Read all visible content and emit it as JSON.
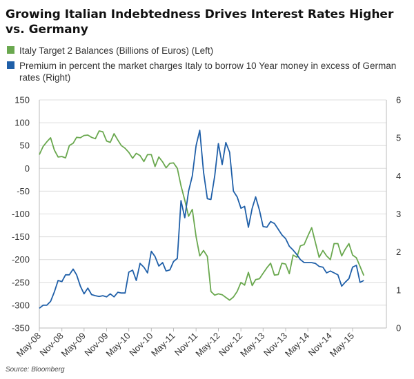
{
  "chart_data": {
    "type": "line",
    "title": "Growing Italian Indebtedness Drives Interest Rates Higher vs. Germany",
    "source": "Source: Bloomberg",
    "x_tick_labels": [
      "May-08",
      "Nov-08",
      "May-09",
      "Nov-09",
      "May-10",
      "Nov-10",
      "May-11",
      "Nov-11",
      "May-12",
      "Nov-12",
      "May-13",
      "Nov-13",
      "May-14",
      "Nov-14",
      "May-15"
    ],
    "y_left": {
      "ticks": [
        -350,
        -300,
        -250,
        -200,
        -150,
        -100,
        -50,
        0,
        50,
        100,
        150
      ],
      "range": [
        -350,
        150
      ]
    },
    "y_right": {
      "ticks": [
        0,
        1,
        2,
        3,
        4,
        5,
        6
      ],
      "range": [
        0,
        6
      ]
    },
    "grid": "horizontal",
    "legend_placement": "top",
    "series": [
      {
        "name": "Italy Target 2 Balances (Billions of Euros) (Left)",
        "axis": "left",
        "color": "#6aa84f",
        "points": [
          [
            "2008-05-01",
            30
          ],
          [
            "2008-06-01",
            48
          ],
          [
            "2008-07-01",
            58
          ],
          [
            "2008-08-01",
            67
          ],
          [
            "2008-09-01",
            40
          ],
          [
            "2008-10-01",
            25
          ],
          [
            "2008-11-01",
            26
          ],
          [
            "2008-12-01",
            23
          ],
          [
            "2009-01-01",
            50
          ],
          [
            "2009-02-01",
            55
          ],
          [
            "2009-03-01",
            68
          ],
          [
            "2009-04-01",
            67
          ],
          [
            "2009-05-01",
            72
          ],
          [
            "2009-06-01",
            73
          ],
          [
            "2009-07-01",
            68
          ],
          [
            "2009-08-01",
            65
          ],
          [
            "2009-09-01",
            82
          ],
          [
            "2009-10-01",
            80
          ],
          [
            "2009-11-01",
            60
          ],
          [
            "2009-12-01",
            57
          ],
          [
            "2010-01-01",
            76
          ],
          [
            "2010-02-01",
            62
          ],
          [
            "2010-03-01",
            50
          ],
          [
            "2010-04-01",
            44
          ],
          [
            "2010-05-01",
            35
          ],
          [
            "2010-06-01",
            22
          ],
          [
            "2010-07-01",
            33
          ],
          [
            "2010-08-01",
            28
          ],
          [
            "2010-09-01",
            15
          ],
          [
            "2010-10-01",
            30
          ],
          [
            "2010-11-01",
            30
          ],
          [
            "2010-12-01",
            4
          ],
          [
            "2011-01-01",
            25
          ],
          [
            "2011-02-01",
            14
          ],
          [
            "2011-03-01",
            1
          ],
          [
            "2011-04-01",
            11
          ],
          [
            "2011-05-01",
            12
          ],
          [
            "2011-06-01",
            0
          ],
          [
            "2011-07-01",
            -38
          ],
          [
            "2011-08-01",
            -70
          ],
          [
            "2011-09-01",
            -105
          ],
          [
            "2011-10-01",
            -90
          ],
          [
            "2011-11-01",
            -150
          ],
          [
            "2011-12-01",
            -192
          ],
          [
            "2012-01-01",
            -180
          ],
          [
            "2012-02-01",
            -193
          ],
          [
            "2012-03-01",
            -270
          ],
          [
            "2012-04-01",
            -278
          ],
          [
            "2012-05-01",
            -275
          ],
          [
            "2012-06-01",
            -277
          ],
          [
            "2012-07-01",
            -283
          ],
          [
            "2012-08-01",
            -289
          ],
          [
            "2012-09-01",
            -282
          ],
          [
            "2012-10-01",
            -270
          ],
          [
            "2012-11-01",
            -250
          ],
          [
            "2012-12-01",
            -256
          ],
          [
            "2013-01-01",
            -228
          ],
          [
            "2013-02-01",
            -257
          ],
          [
            "2013-03-01",
            -244
          ],
          [
            "2013-04-01",
            -242
          ],
          [
            "2013-05-01",
            -230
          ],
          [
            "2013-06-01",
            -218
          ],
          [
            "2013-07-01",
            -208
          ],
          [
            "2013-08-01",
            -234
          ],
          [
            "2013-09-01",
            -233
          ],
          [
            "2013-10-01",
            -208
          ],
          [
            "2013-11-01",
            -210
          ],
          [
            "2013-12-01",
            -231
          ],
          [
            "2014-01-01",
            -190
          ],
          [
            "2014-02-01",
            -195
          ],
          [
            "2014-03-01",
            -170
          ],
          [
            "2014-04-01",
            -167
          ],
          [
            "2014-05-01",
            -148
          ],
          [
            "2014-06-01",
            -130
          ],
          [
            "2014-07-01",
            -162
          ],
          [
            "2014-08-01",
            -195
          ],
          [
            "2014-09-01",
            -180
          ],
          [
            "2014-10-01",
            -192
          ],
          [
            "2014-11-01",
            -200
          ],
          [
            "2014-12-01",
            -165
          ],
          [
            "2015-01-01",
            -165
          ],
          [
            "2015-02-01",
            -192
          ],
          [
            "2015-03-01",
            -178
          ],
          [
            "2015-04-01",
            -165
          ],
          [
            "2015-05-01",
            -190
          ],
          [
            "2015-06-01",
            -196
          ],
          [
            "2015-07-01",
            -215
          ],
          [
            "2015-08-01",
            -235
          ]
        ]
      },
      {
        "name": "Premium in percent the market charges Italy to borrow 10 Year money in excess of German rates (Right)",
        "axis": "right",
        "color": "#1f5fa8",
        "points": [
          [
            "2008-05-01",
            0.52
          ],
          [
            "2008-06-01",
            0.6
          ],
          [
            "2008-07-01",
            0.6
          ],
          [
            "2008-08-01",
            0.7
          ],
          [
            "2008-09-01",
            0.95
          ],
          [
            "2008-10-01",
            1.25
          ],
          [
            "2008-11-01",
            1.22
          ],
          [
            "2008-12-01",
            1.4
          ],
          [
            "2009-01-01",
            1.4
          ],
          [
            "2009-02-01",
            1.55
          ],
          [
            "2009-03-01",
            1.4
          ],
          [
            "2009-04-01",
            1.1
          ],
          [
            "2009-05-01",
            0.9
          ],
          [
            "2009-06-01",
            1.05
          ],
          [
            "2009-07-01",
            0.88
          ],
          [
            "2009-08-01",
            0.85
          ],
          [
            "2009-09-01",
            0.83
          ],
          [
            "2009-10-01",
            0.85
          ],
          [
            "2009-11-01",
            0.82
          ],
          [
            "2009-12-01",
            0.9
          ],
          [
            "2010-01-01",
            0.82
          ],
          [
            "2010-02-01",
            0.94
          ],
          [
            "2010-03-01",
            0.92
          ],
          [
            "2010-04-01",
            0.92
          ],
          [
            "2010-05-01",
            1.47
          ],
          [
            "2010-06-01",
            1.52
          ],
          [
            "2010-07-01",
            1.25
          ],
          [
            "2010-08-01",
            1.7
          ],
          [
            "2010-09-01",
            1.6
          ],
          [
            "2010-10-01",
            1.45
          ],
          [
            "2010-11-01",
            2.02
          ],
          [
            "2010-12-01",
            1.88
          ],
          [
            "2011-01-01",
            1.63
          ],
          [
            "2011-02-01",
            1.72
          ],
          [
            "2011-03-01",
            1.5
          ],
          [
            "2011-04-01",
            1.53
          ],
          [
            "2011-05-01",
            1.75
          ],
          [
            "2011-06-01",
            1.83
          ],
          [
            "2011-07-01",
            3.35
          ],
          [
            "2011-08-01",
            2.9
          ],
          [
            "2011-09-01",
            3.6
          ],
          [
            "2011-10-01",
            4.0
          ],
          [
            "2011-11-01",
            4.8
          ],
          [
            "2011-12-01",
            5.2
          ],
          [
            "2012-01-01",
            4.1
          ],
          [
            "2012-02-01",
            3.4
          ],
          [
            "2012-03-01",
            3.38
          ],
          [
            "2012-04-01",
            4.0
          ],
          [
            "2012-05-01",
            4.85
          ],
          [
            "2012-06-01",
            4.3
          ],
          [
            "2012-07-01",
            4.88
          ],
          [
            "2012-08-01",
            4.62
          ],
          [
            "2012-09-01",
            3.6
          ],
          [
            "2012-10-01",
            3.45
          ],
          [
            "2012-11-01",
            3.15
          ],
          [
            "2012-12-01",
            3.2
          ],
          [
            "2013-01-01",
            2.65
          ],
          [
            "2013-02-01",
            3.15
          ],
          [
            "2013-03-01",
            3.45
          ],
          [
            "2013-04-01",
            3.1
          ],
          [
            "2013-05-01",
            2.67
          ],
          [
            "2013-06-01",
            2.65
          ],
          [
            "2013-07-01",
            2.8
          ],
          [
            "2013-08-01",
            2.75
          ],
          [
            "2013-09-01",
            2.6
          ],
          [
            "2013-10-01",
            2.45
          ],
          [
            "2013-11-01",
            2.35
          ],
          [
            "2013-12-01",
            2.15
          ],
          [
            "2014-01-01",
            2.05
          ],
          [
            "2014-02-01",
            1.93
          ],
          [
            "2014-03-01",
            1.8
          ],
          [
            "2014-04-01",
            1.72
          ],
          [
            "2014-05-01",
            1.72
          ],
          [
            "2014-06-01",
            1.72
          ],
          [
            "2014-07-01",
            1.7
          ],
          [
            "2014-08-01",
            1.62
          ],
          [
            "2014-09-01",
            1.6
          ],
          [
            "2014-10-01",
            1.45
          ],
          [
            "2014-11-01",
            1.5
          ],
          [
            "2014-12-01",
            1.45
          ],
          [
            "2015-01-01",
            1.4
          ],
          [
            "2015-02-01",
            1.1
          ],
          [
            "2015-03-01",
            1.2
          ],
          [
            "2015-04-01",
            1.3
          ],
          [
            "2015-05-01",
            1.6
          ],
          [
            "2015-06-01",
            1.65
          ],
          [
            "2015-07-01",
            1.2
          ],
          [
            "2015-08-01",
            1.25
          ]
        ]
      }
    ]
  }
}
